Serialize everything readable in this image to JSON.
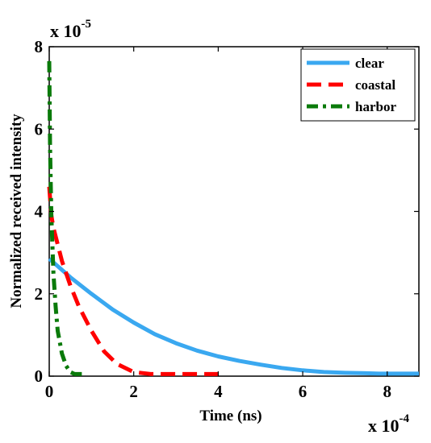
{
  "chart_data": {
    "type": "line",
    "title": "",
    "xlabel": "Time (ns)",
    "ylabel": "Normalized received intensity",
    "x_multiplier": {
      "base": "x 10",
      "exponent": "-4"
    },
    "y_multiplier": {
      "base": "x 10",
      "exponent": "-5"
    },
    "x_ticks": [
      "0",
      "2",
      "4",
      "6",
      "8"
    ],
    "y_ticks": [
      "0",
      "2",
      "4",
      "6",
      "8"
    ],
    "xlim": [
      0,
      8.75
    ],
    "ylim": [
      0,
      8
    ],
    "grid": false,
    "legend_position": "top-right",
    "series": [
      {
        "name": "clear",
        "color": "#3aa8f0",
        "dash": "solid",
        "x": [
          0,
          0.5,
          1,
          1.5,
          2,
          2.5,
          3,
          3.5,
          4,
          4.5,
          5,
          5.5,
          6,
          6.5,
          7,
          7.5,
          7.8,
          8.75
        ],
        "y": [
          2.85,
          2.4,
          2.0,
          1.62,
          1.3,
          1.02,
          0.8,
          0.62,
          0.48,
          0.37,
          0.28,
          0.2,
          0.14,
          0.1,
          0.08,
          0.07,
          0.06,
          0.06
        ]
      },
      {
        "name": "coastal",
        "color": "#ff0000",
        "dash": "dashed",
        "x": [
          0,
          0.05,
          0.1,
          0.2,
          0.3,
          0.5,
          0.7,
          1.0,
          1.3,
          1.6,
          2.0,
          2.4,
          3.0,
          4.1
        ],
        "y": [
          4.6,
          3.9,
          3.6,
          3.2,
          2.8,
          2.2,
          1.7,
          1.1,
          0.6,
          0.3,
          0.1,
          0.05,
          0.05,
          0.05
        ]
      },
      {
        "name": "harbor",
        "color": "#0a7a0a",
        "dash": "dash-dot",
        "x": [
          0,
          0.02,
          0.05,
          0.1,
          0.15,
          0.2,
          0.3,
          0.4,
          0.5,
          0.6,
          0.8
        ],
        "y": [
          7.65,
          5.6,
          3.9,
          2.5,
          1.7,
          1.1,
          0.55,
          0.25,
          0.1,
          0.05,
          0.05
        ]
      }
    ]
  }
}
